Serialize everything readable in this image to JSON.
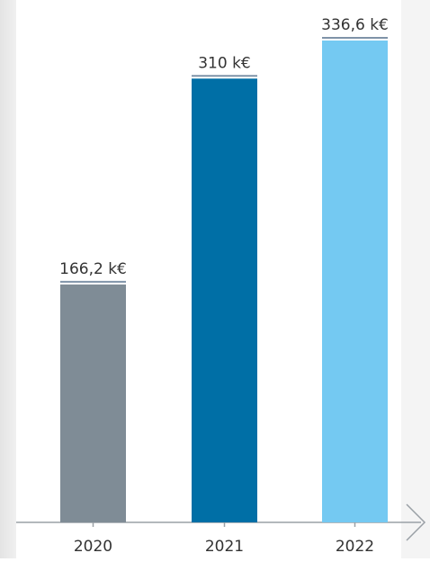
{
  "chart_data": {
    "type": "bar",
    "categories": [
      "2020",
      "2021",
      "2022"
    ],
    "values": [
      166.2,
      310,
      336.6
    ],
    "value_labels": [
      "166,2 k€",
      "310 k€",
      "336,6 k€"
    ],
    "colors": [
      "#7f8c96",
      "#006fa6",
      "#74c9f2"
    ]
  }
}
